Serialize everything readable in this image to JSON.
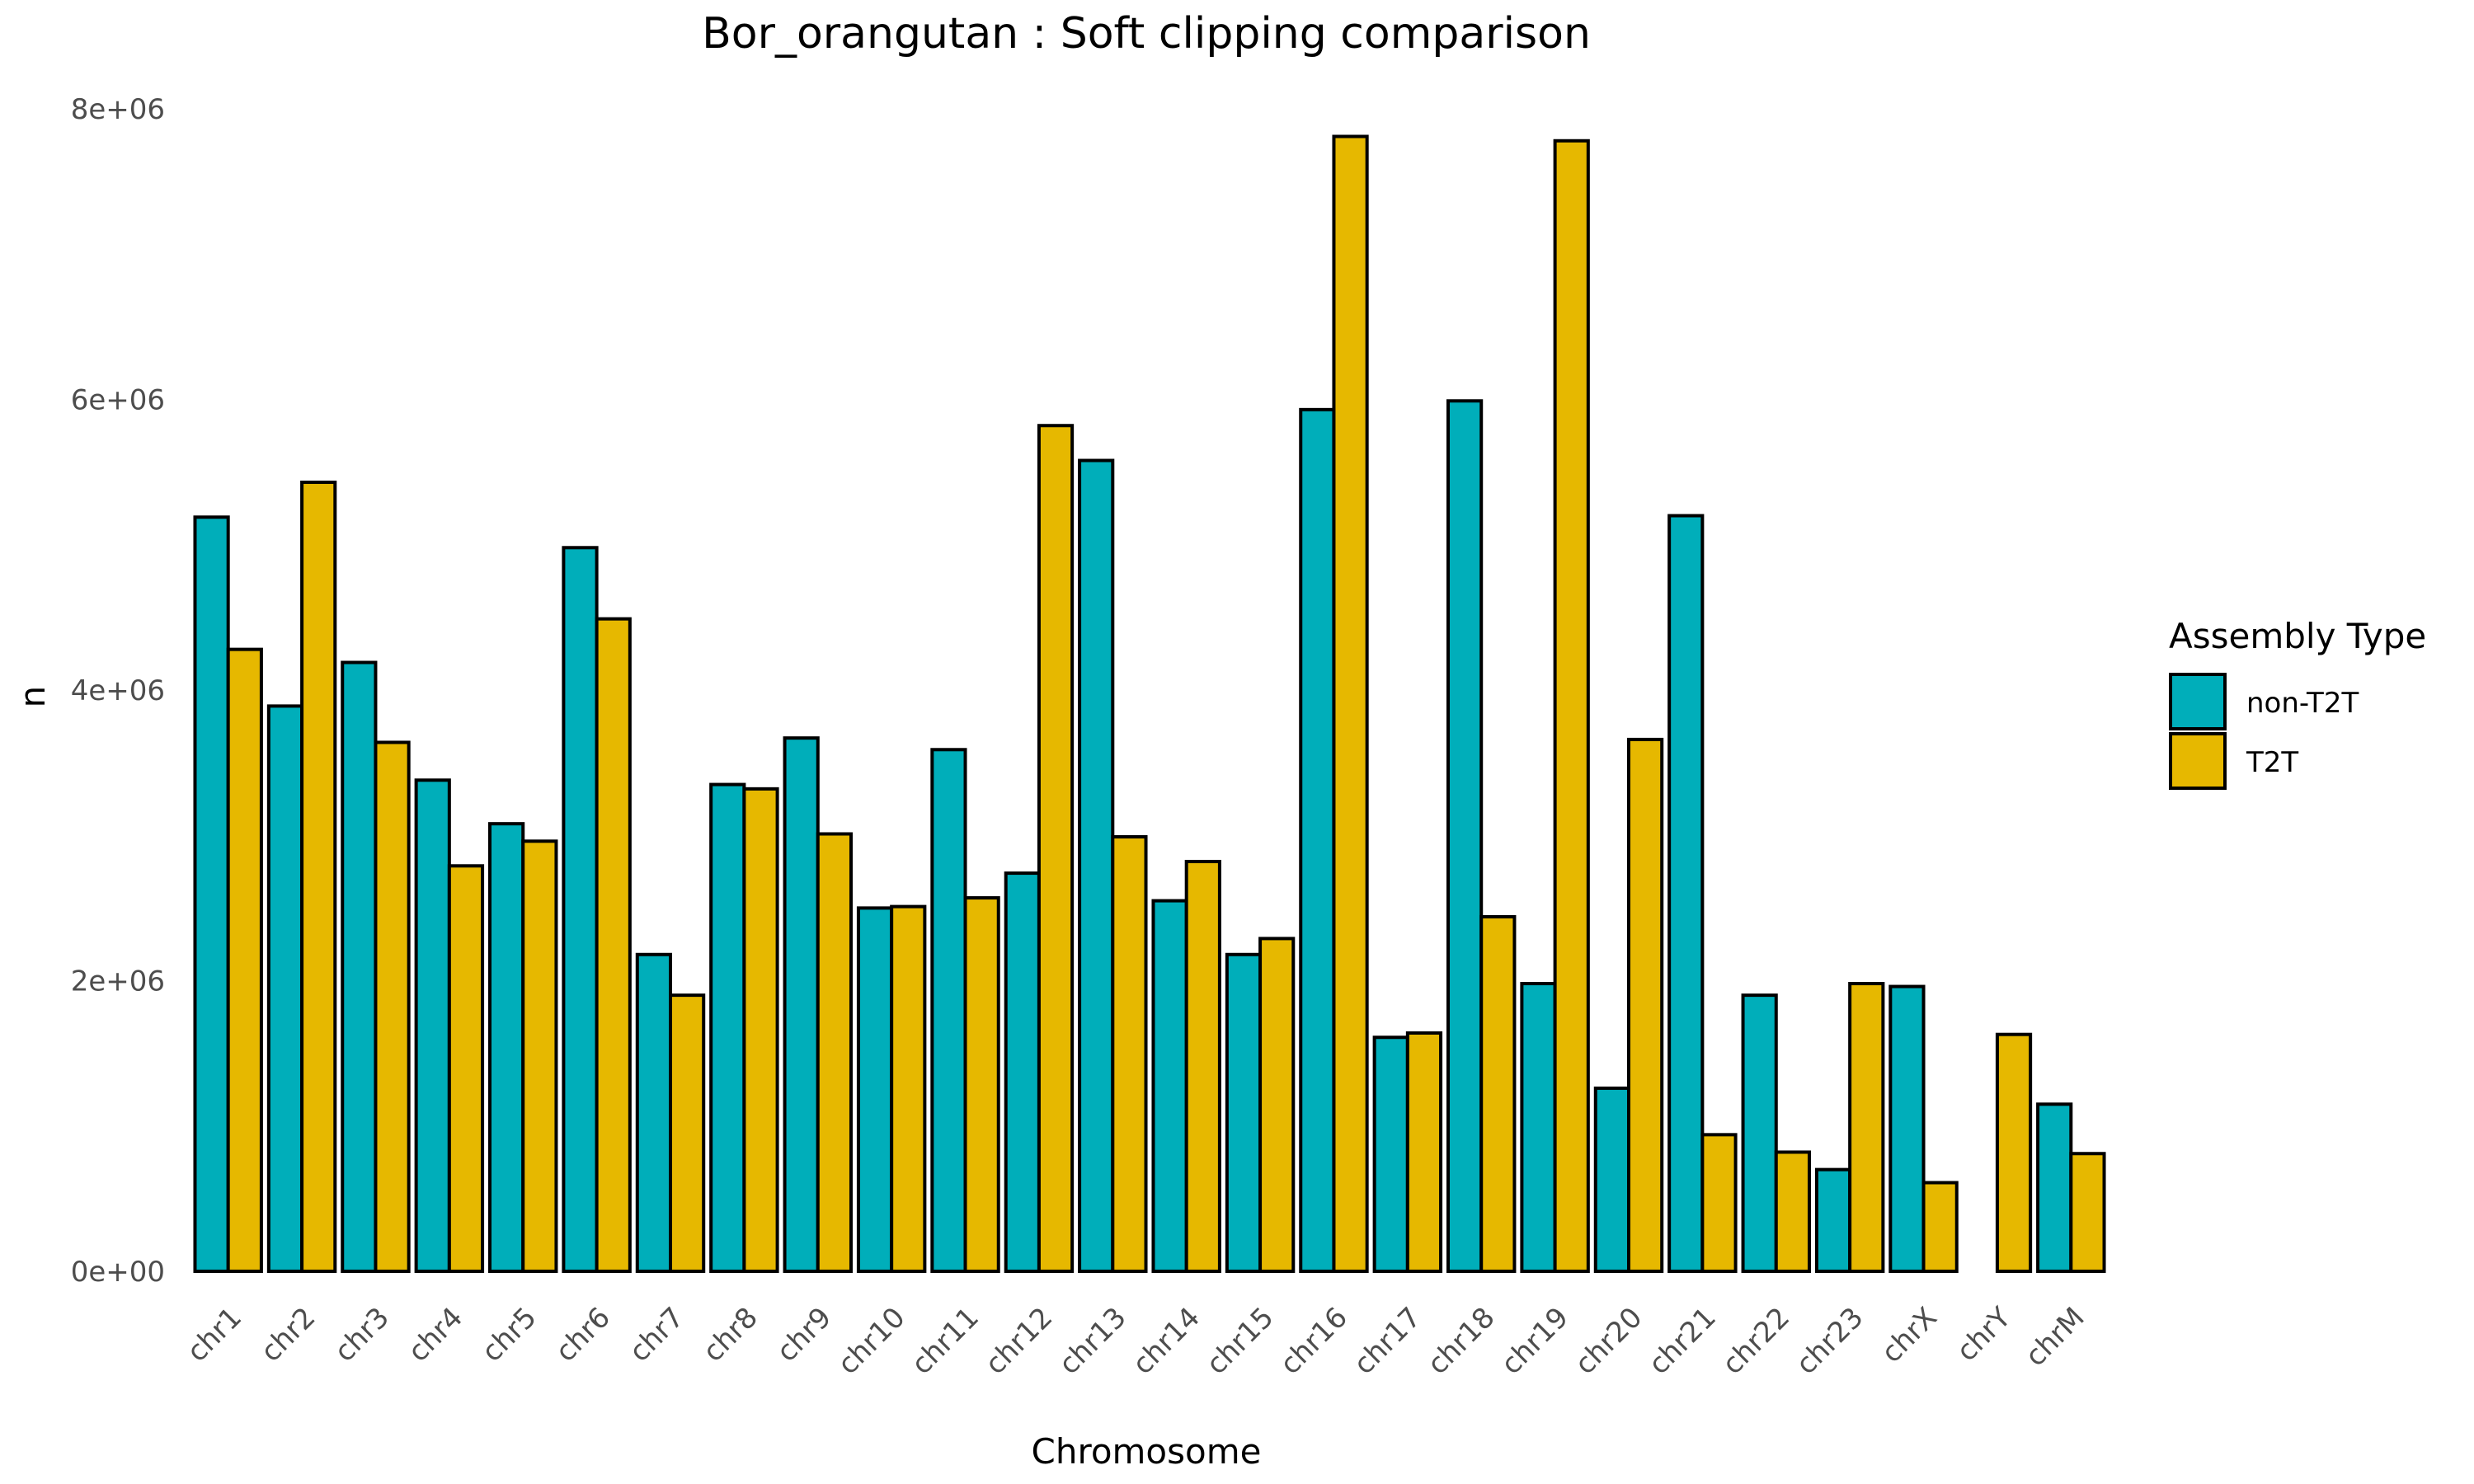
{
  "chart_data": {
    "type": "bar",
    "title": "Bor_orangutan : Soft clipping comparison",
    "xlabel": "Chromosome",
    "ylabel": "n",
    "ylim": [
      0,
      8000000
    ],
    "yticks": [
      0,
      2000000,
      4000000,
      6000000,
      8000000
    ],
    "ytick_labels": [
      "0e+00",
      "2e+06",
      "4e+06",
      "6e+06",
      "8e+06"
    ],
    "grid": false,
    "legend": {
      "title": "Assembly Type",
      "position": "right"
    },
    "categories": [
      "chr1",
      "chr2",
      "chr3",
      "chr4",
      "chr5",
      "chr6",
      "chr7",
      "chr8",
      "chr9",
      "chr10",
      "chr11",
      "chr12",
      "chr13",
      "chr14",
      "chr15",
      "chr16",
      "chr17",
      "chr18",
      "chr19",
      "chr20",
      "chr21",
      "chr22",
      "chr23",
      "chrX",
      "chrY",
      "chrM"
    ],
    "series": [
      {
        "name": "non-T2T",
        "color": "#00AEBA",
        "values": [
          5190000,
          3890000,
          4190000,
          3380000,
          3080000,
          4980000,
          2180000,
          3350000,
          3670000,
          2500000,
          3590000,
          2740000,
          5580000,
          2550000,
          2180000,
          5930000,
          1610000,
          5990000,
          1980000,
          1260000,
          5200000,
          1900000,
          700000,
          1960000,
          0,
          1150000
        ]
      },
      {
        "name": "T2T",
        "color": "#E6B800",
        "values": [
          4280000,
          5430000,
          3640000,
          2790000,
          2960000,
          4490000,
          1900000,
          3320000,
          3010000,
          2510000,
          2570000,
          5820000,
          2990000,
          2820000,
          2290000,
          7810000,
          1640000,
          2440000,
          7780000,
          3660000,
          940000,
          820000,
          1980000,
          610000,
          1630000,
          810000
        ]
      }
    ]
  }
}
